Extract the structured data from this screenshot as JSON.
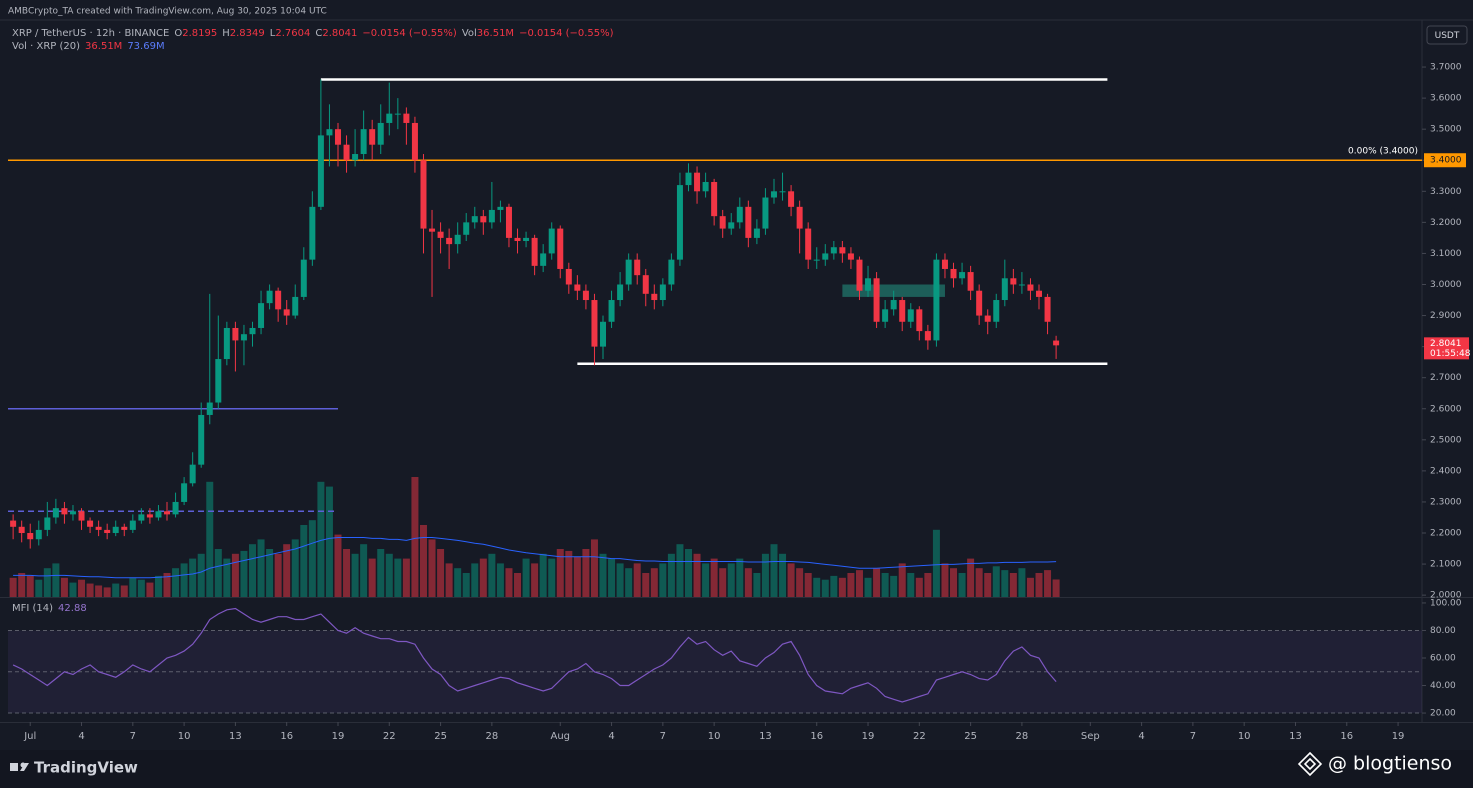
{
  "header": "AMBCrypto_TA created with TradingView.com, Aug 30, 2025 10:04 UTC",
  "brand": "TradingView",
  "watermark": "@ blogtienso",
  "chart_data": {
    "type": "candlestick",
    "symbol": "XRP / TetherUS · 12h · BINANCE",
    "legend": [
      {
        "label": "O",
        "value": 2.8195
      },
      {
        "label": "H",
        "value": 2.8349
      },
      {
        "label": "L",
        "value": 2.7604
      },
      {
        "label": "C",
        "value": 2.8041
      }
    ],
    "change": "−0.0154 (−0.55%)",
    "legend_volume": {
      "label": "Vol",
      "value": "36.51M",
      "change": "−0.0154 (−0.55%)"
    },
    "currency": "USDT",
    "colors": {
      "up": "#089981",
      "down": "#f23645"
    },
    "xlim": [
      -0.6,
      164.8
    ],
    "xticks": [
      {
        "value": 2,
        "label": "Jul"
      },
      {
        "value": 8,
        "label": "4"
      },
      {
        "value": 14,
        "label": "7"
      },
      {
        "value": 20,
        "label": "10"
      },
      {
        "value": 26,
        "label": "13"
      },
      {
        "value": 32,
        "label": "16"
      },
      {
        "value": 38,
        "label": "19"
      },
      {
        "value": 44,
        "label": "22"
      },
      {
        "value": 50,
        "label": "25"
      },
      {
        "value": 56,
        "label": "28"
      },
      {
        "value": 64,
        "label": "Aug"
      },
      {
        "value": 70,
        "label": "4"
      },
      {
        "value": 76,
        "label": "7"
      },
      {
        "value": 82,
        "label": "10"
      },
      {
        "value": 88,
        "label": "13"
      },
      {
        "value": 94,
        "label": "16"
      },
      {
        "value": 100,
        "label": "19"
      },
      {
        "value": 106,
        "label": "22"
      },
      {
        "value": 112,
        "label": "25"
      },
      {
        "value": 118,
        "label": "28"
      },
      {
        "value": 126,
        "label": "Sep"
      },
      {
        "value": 132,
        "label": "4"
      },
      {
        "value": 138,
        "label": "7"
      },
      {
        "value": 144,
        "label": "10"
      },
      {
        "value": 150,
        "label": "13"
      },
      {
        "value": 156,
        "label": "16"
      },
      {
        "value": 162,
        "label": "19"
      }
    ],
    "ylim": [
      1.994,
      3.845
    ],
    "yticks": [
      {
        "value": 2.0,
        "label": "2.0000"
      },
      {
        "value": 2.1,
        "label": "2.1000"
      },
      {
        "value": 2.2,
        "label": "2.2000"
      },
      {
        "value": 2.3,
        "label": "2.3000"
      },
      {
        "value": 2.4,
        "label": "2.4000"
      },
      {
        "value": 2.5,
        "label": "2.5000"
      },
      {
        "value": 2.6,
        "label": "2.6000"
      },
      {
        "value": 2.7,
        "label": "2.7000"
      },
      {
        "value": 2.8,
        "label": "2.8000"
      },
      {
        "value": 2.9,
        "label": "2.9000"
      },
      {
        "value": 3.0,
        "label": "3.0000"
      },
      {
        "value": 3.1,
        "label": "3.1000"
      },
      {
        "value": 3.2,
        "label": "3.2000"
      },
      {
        "value": 3.3,
        "label": "3.3000"
      },
      {
        "value": 3.4,
        "label": "3.4000"
      },
      {
        "value": 3.5,
        "label": "3.5000"
      },
      {
        "value": 3.6,
        "label": "3.6000"
      },
      {
        "value": 3.7,
        "label": "3.7000"
      }
    ],
    "grid": false,
    "open": [
      2.24,
      2.22,
      2.2,
      2.18,
      2.21,
      2.25,
      2.28,
      2.26,
      2.27,
      2.24,
      2.22,
      2.21,
      2.2,
      2.22,
      2.21,
      2.24,
      2.26,
      2.25,
      2.27,
      2.26,
      2.3,
      2.36,
      2.42,
      2.58,
      2.62,
      2.76,
      2.86,
      2.82,
      2.84,
      2.86,
      2.94,
      2.98,
      2.92,
      2.9,
      2.96,
      3.08,
      3.25,
      3.48,
      3.5,
      3.45,
      3.4,
      3.42,
      3.5,
      3.45,
      3.52,
      3.55,
      3.55,
      3.52,
      3.4,
      3.18,
      3.17,
      3.15,
      3.13,
      3.16,
      3.2,
      3.22,
      3.2,
      3.24,
      3.25,
      3.15,
      3.14,
      3.15,
      3.06,
      3.1,
      3.18,
      3.05,
      3.0,
      2.98,
      2.95,
      2.8,
      2.88,
      2.95,
      3.0,
      3.08,
      3.03,
      2.97,
      2.95,
      3.0,
      3.08,
      3.32,
      3.36,
      3.3,
      3.33,
      3.22,
      3.18,
      3.2,
      3.25,
      3.15,
      3.18,
      3.28,
      3.3,
      3.3,
      3.25,
      3.18,
      3.08,
      3.08,
      3.1,
      3.12,
      3.1,
      3.08,
      2.98,
      3.02,
      2.88,
      2.92,
      2.95,
      2.88,
      2.92,
      2.85,
      2.82,
      3.08,
      3.05,
      3.02,
      3.04,
      2.98,
      2.9,
      2.88,
      2.95,
      3.02,
      3.0,
      3.0,
      2.98,
      2.96,
      2.8195
    ],
    "high": [
      2.26,
      2.24,
      2.23,
      2.24,
      2.3,
      2.31,
      2.3,
      2.29,
      2.28,
      2.25,
      2.24,
      2.23,
      2.24,
      2.23,
      2.26,
      2.28,
      2.28,
      2.29,
      2.3,
      2.33,
      2.38,
      2.46,
      2.62,
      2.97,
      2.9,
      2.88,
      2.88,
      2.87,
      2.88,
      2.98,
      3.0,
      2.99,
      2.95,
      3.0,
      3.12,
      3.3,
      3.66,
      3.58,
      3.52,
      3.48,
      3.5,
      3.56,
      3.53,
      3.58,
      3.65,
      3.6,
      3.57,
      3.54,
      3.42,
      3.24,
      3.2,
      3.18,
      3.2,
      3.23,
      3.25,
      3.24,
      3.33,
      3.27,
      3.26,
      3.18,
      3.17,
      3.16,
      3.13,
      3.2,
      3.19,
      3.07,
      3.03,
      3.0,
      2.97,
      2.9,
      2.98,
      3.04,
      3.1,
      3.1,
      3.05,
      3.0,
      3.02,
      3.1,
      3.36,
      3.39,
      3.38,
      3.36,
      3.34,
      3.24,
      3.23,
      3.28,
      3.27,
      3.21,
      3.31,
      3.34,
      3.36,
      3.32,
      3.27,
      3.2,
      3.12,
      3.13,
      3.14,
      3.14,
      3.12,
      3.09,
      3.06,
      3.04,
      2.95,
      2.98,
      2.96,
      2.94,
      2.93,
      2.87,
      3.1,
      3.1,
      3.07,
      3.07,
      3.06,
      3.0,
      2.92,
      2.97,
      3.08,
      3.05,
      3.04,
      3.02,
      3.0,
      2.97,
      2.8349
    ],
    "low": [
      2.18,
      2.17,
      2.15,
      2.16,
      2.19,
      2.23,
      2.23,
      2.24,
      2.21,
      2.2,
      2.19,
      2.18,
      2.19,
      2.19,
      2.2,
      2.23,
      2.23,
      2.24,
      2.24,
      2.25,
      2.29,
      2.35,
      2.41,
      2.55,
      2.6,
      2.74,
      2.72,
      2.74,
      2.8,
      2.84,
      2.92,
      2.88,
      2.87,
      2.89,
      2.95,
      3.06,
      3.24,
      3.38,
      3.38,
      3.36,
      3.38,
      3.4,
      3.4,
      3.42,
      3.48,
      3.5,
      3.45,
      3.36,
      3.1,
      2.96,
      3.1,
      3.05,
      3.1,
      3.14,
      3.18,
      3.16,
      3.18,
      3.2,
      3.12,
      3.1,
      3.12,
      3.03,
      3.04,
      3.08,
      3.02,
      2.97,
      2.95,
      2.92,
      2.74,
      2.76,
      2.86,
      2.93,
      2.98,
      3.0,
      2.93,
      2.92,
      2.93,
      2.98,
      3.06,
      3.3,
      3.26,
      3.28,
      3.19,
      3.15,
      3.16,
      3.18,
      3.12,
      3.13,
      3.16,
      3.26,
      3.27,
      3.22,
      3.1,
      3.05,
      3.05,
      3.06,
      3.08,
      3.07,
      3.05,
      2.95,
      2.96,
      2.86,
      2.86,
      2.9,
      2.85,
      2.86,
      2.82,
      2.79,
      2.8,
      3.02,
      2.99,
      3.0,
      2.95,
      2.87,
      2.84,
      2.86,
      2.93,
      2.97,
      2.97,
      2.95,
      2.92,
      2.84,
      2.7604
    ],
    "close": [
      2.22,
      2.2,
      2.18,
      2.21,
      2.25,
      2.28,
      2.26,
      2.27,
      2.24,
      2.22,
      2.21,
      2.2,
      2.22,
      2.21,
      2.24,
      2.26,
      2.25,
      2.27,
      2.26,
      2.3,
      2.36,
      2.42,
      2.58,
      2.62,
      2.76,
      2.86,
      2.82,
      2.84,
      2.86,
      2.94,
      2.98,
      2.92,
      2.9,
      2.96,
      3.08,
      3.25,
      3.48,
      3.5,
      3.45,
      3.4,
      3.42,
      3.5,
      3.45,
      3.52,
      3.55,
      3.55,
      3.52,
      3.4,
      3.18,
      3.17,
      3.15,
      3.13,
      3.16,
      3.2,
      3.22,
      3.2,
      3.24,
      3.25,
      3.15,
      3.14,
      3.15,
      3.06,
      3.1,
      3.18,
      3.05,
      3.0,
      2.98,
      2.95,
      2.8,
      2.88,
      2.95,
      3.0,
      3.08,
      3.03,
      2.97,
      2.95,
      3.0,
      3.08,
      3.32,
      3.36,
      3.3,
      3.33,
      3.22,
      3.18,
      3.2,
      3.25,
      3.15,
      3.18,
      3.28,
      3.3,
      3.3,
      3.25,
      3.18,
      3.08,
      3.08,
      3.1,
      3.12,
      3.1,
      3.08,
      2.98,
      3.02,
      2.88,
      2.92,
      2.95,
      2.88,
      2.92,
      2.85,
      2.82,
      3.08,
      3.05,
      3.02,
      3.04,
      2.98,
      2.9,
      2.88,
      2.95,
      3.02,
      3.0,
      3.0,
      2.98,
      2.96,
      2.88,
      2.8041
    ],
    "countdown": "01:55:48",
    "levels": [
      {
        "value": 3.4,
        "label": "3.4000",
        "text": "0.00% (3.4000)",
        "color": "#ff9800"
      }
    ],
    "lines": [
      {
        "value": 3.66,
        "from": 36,
        "to": 128,
        "color": "#ffffff"
      },
      {
        "value": 2.745,
        "from": 66,
        "to": 128,
        "color": "#ffffff"
      },
      {
        "value": 2.6,
        "from": -0.6,
        "to": 38,
        "color": "#5d5fd8"
      },
      {
        "value": 2.27,
        "from": -0.6,
        "to": 38,
        "color": "#5d5fd8",
        "dashed": true
      }
    ],
    "box": {
      "top": 3.0,
      "bottom": 2.96,
      "from": 97,
      "to": 109,
      "color": "#1f6f67"
    },
    "volume": {
      "name": "Vol · XRP (20)",
      "value_label": "36.51M",
      "ma_label": "73.69M",
      "ma_color": "#2962ff",
      "values": [
        40,
        50,
        44,
        36,
        60,
        70,
        40,
        30,
        36,
        28,
        24,
        20,
        28,
        24,
        40,
        36,
        30,
        44,
        50,
        60,
        70,
        80,
        90,
        240,
        100,
        80,
        90,
        96,
        110,
        120,
        100,
        90,
        110,
        120,
        150,
        160,
        240,
        230,
        130,
        100,
        90,
        110,
        80,
        100,
        90,
        80,
        80,
        250,
        150,
        120,
        100,
        70,
        60,
        50,
        70,
        80,
        90,
        70,
        60,
        50,
        80,
        70,
        90,
        80,
        100,
        96,
        84,
        100,
        120,
        90,
        80,
        70,
        60,
        70,
        50,
        60,
        70,
        90,
        110,
        100,
        90,
        70,
        80,
        60,
        70,
        80,
        60,
        50,
        90,
        110,
        90,
        70,
        60,
        50,
        40,
        36,
        44,
        40,
        50,
        56,
        40,
        60,
        50,
        44,
        70,
        50,
        40,
        50,
        140,
        70,
        60,
        50,
        80,
        60,
        50,
        64,
        56,
        50,
        60,
        40,
        50,
        56,
        36.51
      ],
      "ma": [
        45,
        45,
        45,
        44,
        44,
        45,
        45,
        44,
        43,
        42,
        42,
        41,
        40,
        40,
        40,
        40,
        40,
        41,
        42,
        44,
        46,
        48,
        52,
        60,
        64,
        68,
        72,
        76,
        80,
        84,
        88,
        92,
        96,
        100,
        106,
        112,
        118,
        122,
        124,
        124,
        124,
        124,
        122,
        122,
        120,
        120,
        118,
        122,
        124,
        124,
        122,
        120,
        118,
        115,
        112,
        110,
        106,
        102,
        98,
        95,
        92,
        90,
        88,
        86,
        84,
        84,
        84,
        84,
        84,
        82,
        80,
        80,
        78,
        76,
        75,
        75,
        74,
        74,
        74,
        74,
        74,
        74,
        74,
        74,
        74,
        74,
        73,
        73,
        73,
        74,
        74,
        74,
        73,
        72,
        70,
        68,
        66,
        64,
        62,
        60,
        60,
        60,
        61,
        62,
        63,
        64,
        65,
        66,
        67,
        68,
        68,
        69,
        70,
        70,
        71,
        71,
        72,
        72,
        72,
        73,
        73,
        73,
        73.69
      ]
    },
    "mfi": {
      "name": "MFI (14)",
      "value_label": "42.88",
      "color": "#7e57c2",
      "ylim": [
        13.5,
        103.6
      ],
      "yticks": [
        {
          "value": 20,
          "label": "20.00"
        },
        {
          "value": 40,
          "label": "40.00"
        },
        {
          "value": 60,
          "label": "60.00"
        },
        {
          "value": 80,
          "label": "80.00"
        },
        {
          "value": 100,
          "label": "100.00"
        }
      ],
      "bands": [
        80,
        50,
        20
      ],
      "values": [
        55,
        52,
        48,
        44,
        40,
        45,
        50,
        48,
        52,
        55,
        50,
        48,
        46,
        50,
        55,
        52,
        50,
        55,
        60,
        62,
        65,
        70,
        78,
        88,
        92,
        95,
        96,
        92,
        88,
        86,
        88,
        90,
        90,
        88,
        88,
        90,
        92,
        86,
        80,
        78,
        82,
        78,
        76,
        74,
        74,
        72,
        72,
        70,
        60,
        52,
        48,
        40,
        36,
        38,
        40,
        42,
        44,
        46,
        45,
        42,
        40,
        38,
        36,
        38,
        44,
        50,
        52,
        56,
        50,
        48,
        45,
        40,
        40,
        44,
        48,
        52,
        55,
        60,
        68,
        75,
        70,
        72,
        66,
        62,
        65,
        58,
        56,
        54,
        60,
        64,
        70,
        72,
        62,
        48,
        40,
        36,
        35,
        34,
        38,
        40,
        42,
        38,
        32,
        30,
        28,
        30,
        32,
        34,
        44,
        46,
        48,
        50,
        48,
        45,
        44,
        48,
        58,
        65,
        68,
        62,
        60,
        50,
        42.88
      ]
    }
  }
}
